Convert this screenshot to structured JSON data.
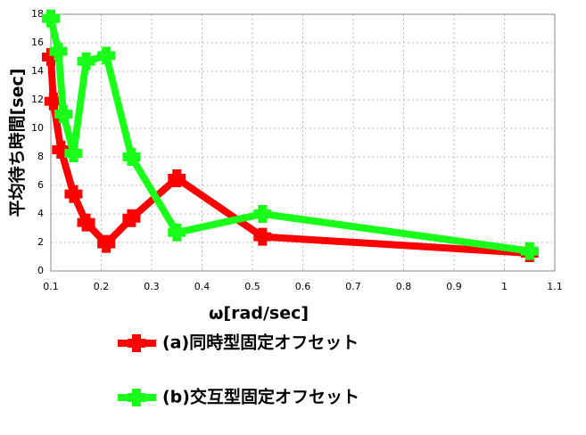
{
  "chart_data": {
    "type": "line",
    "xlabel": "ω[rad/sec]",
    "ylabel": "平均待ち時間[sec]",
    "xlim": [
      0.1,
      1.1
    ],
    "xticks": [
      0.1,
      0.2,
      0.3,
      0.4,
      0.5,
      0.6,
      0.7,
      0.8,
      0.9,
      1,
      1.1
    ],
    "ylim": [
      0,
      18
    ],
    "yticks": [
      0,
      2,
      4,
      6,
      8,
      10,
      12,
      14,
      16,
      18
    ],
    "grid": true,
    "legend": "bottom",
    "series": [
      {
        "name": "(a)同時型固定オフセット",
        "color": "#ff0000",
        "x": [
          0.1,
          0.105,
          0.12,
          0.145,
          0.17,
          0.21,
          0.26,
          0.35,
          0.52,
          1.05
        ],
        "values": [
          15,
          11.9,
          8.5,
          5.4,
          3.4,
          1.9,
          3.7,
          6.5,
          2.4,
          1.25
        ]
      },
      {
        "name": "(b)交互型固定オフセット",
        "color": "#1aff1a",
        "x": [
          0.1,
          0.115,
          0.125,
          0.145,
          0.17,
          0.21,
          0.26,
          0.35,
          0.52,
          1.05
        ],
        "values": [
          17.7,
          15.4,
          11,
          8.25,
          14.7,
          15.1,
          8,
          2.7,
          4,
          1.4
        ]
      }
    ]
  }
}
